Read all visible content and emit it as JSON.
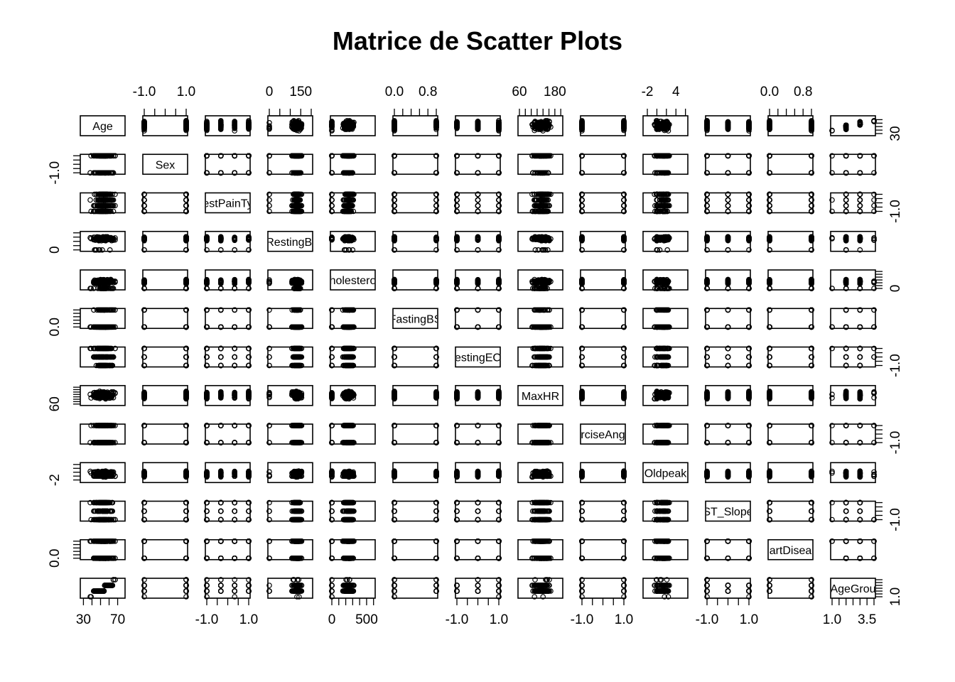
{
  "chart_data": {
    "type": "scatter",
    "kind": "scatterplot-matrix",
    "title": "Matrice de Scatter Plots",
    "variables": [
      {
        "name": "Age",
        "label": "Age",
        "range": [
          28,
          77
        ],
        "ticks": [
          30,
          40,
          50,
          60,
          70
        ],
        "tick_labels": [
          "30",
          "70"
        ],
        "axis": "bottom"
      },
      {
        "name": "Sex",
        "label": "Sex",
        "range": [
          -1,
          1
        ],
        "ticks": [
          -1.0,
          -0.5,
          0.0,
          0.5,
          1.0
        ],
        "tick_labels": [
          "-1.0",
          "1.0"
        ],
        "axis": "top",
        "levels": [
          -1,
          1
        ]
      },
      {
        "name": "ChestPainType",
        "label": "estPainTy",
        "range": [
          -1,
          1
        ],
        "ticks": [
          -1.0,
          -0.5,
          0.0,
          0.5,
          1.0
        ],
        "tick_labels": [
          "-1.0",
          "1.0"
        ],
        "axis": "bottom",
        "levels": [
          -1,
          -0.33,
          0.33,
          1
        ]
      },
      {
        "name": "RestingBP",
        "label": "RestingBl",
        "range": [
          0,
          200
        ],
        "ticks": [
          0,
          50,
          100,
          150,
          200
        ],
        "tick_labels": [
          "0",
          "150"
        ],
        "axis": "top"
      },
      {
        "name": "Cholesterol",
        "label": "holestero",
        "range": [
          0,
          603
        ],
        "ticks": [
          0,
          100,
          200,
          300,
          400,
          500,
          600
        ],
        "tick_labels": [
          "0",
          "500"
        ],
        "axis": "bottom"
      },
      {
        "name": "FastingBS",
        "label": "FastingBS",
        "range": [
          0,
          1
        ],
        "ticks": [
          0.0,
          0.2,
          0.4,
          0.6,
          0.8,
          1.0
        ],
        "tick_labels": [
          "0.0",
          "0.8"
        ],
        "axis": "top",
        "levels": [
          0,
          1
        ]
      },
      {
        "name": "RestingECG",
        "label": "estingEC",
        "range": [
          -1,
          1
        ],
        "ticks": [
          -1.0,
          -0.5,
          0.0,
          0.5,
          1.0
        ],
        "tick_labels": [
          "-1.0",
          "1.0"
        ],
        "axis": "bottom",
        "levels": [
          -1,
          0,
          1
        ]
      },
      {
        "name": "MaxHR",
        "label": "MaxHR",
        "range": [
          60,
          202
        ],
        "ticks": [
          60,
          80,
          100,
          120,
          140,
          160,
          180,
          200
        ],
        "tick_labels": [
          "60",
          "180"
        ],
        "axis": "top"
      },
      {
        "name": "ExerciseAngina",
        "label": "rciseAng",
        "range": [
          -1,
          1
        ],
        "ticks": [
          -1.0,
          -0.5,
          0.0,
          0.5,
          1.0
        ],
        "tick_labels": [
          "-1.0",
          "1.0"
        ],
        "axis": "bottom",
        "levels": [
          -1,
          1
        ]
      },
      {
        "name": "Oldpeak",
        "label": "Oldpeak",
        "range": [
          -2.6,
          6.2
        ],
        "ticks": [
          -2,
          0,
          2,
          4,
          6
        ],
        "tick_labels": [
          "-2",
          "4"
        ],
        "axis": "top"
      },
      {
        "name": "ST_Slope",
        "label": "ST_Slope",
        "range": [
          -1,
          1
        ],
        "ticks": [
          -1.0,
          -0.5,
          0.0,
          0.5,
          1.0
        ],
        "tick_labels": [
          "-1.0",
          "1.0"
        ],
        "axis": "bottom",
        "levels": [
          -1,
          0,
          1
        ]
      },
      {
        "name": "HeartDisease",
        "label": "artDisea",
        "range": [
          0,
          1
        ],
        "ticks": [
          0.0,
          0.2,
          0.4,
          0.6,
          0.8,
          1.0
        ],
        "tick_labels": [
          "0.0",
          "0.8"
        ],
        "axis": "top",
        "levels": [
          0,
          1
        ]
      },
      {
        "name": "AgeGroup",
        "label": "AgeGrou",
        "range": [
          1,
          4
        ],
        "ticks": [
          1.0,
          1.5,
          2.0,
          2.5,
          3.0,
          3.5,
          4.0
        ],
        "tick_labels": [
          "1.0",
          "3.5"
        ],
        "axis": "bottom",
        "levels": [
          1,
          2,
          3,
          4
        ]
      }
    ],
    "left_axis_labels": [
      {
        "row": 1,
        "labels": [
          "-1.0"
        ]
      },
      {
        "row": 3,
        "labels": [
          "0"
        ]
      },
      {
        "row": 5,
        "labels": [
          "0.0"
        ]
      },
      {
        "row": 7,
        "labels": [
          "60"
        ]
      },
      {
        "row": 9,
        "labels": [
          "-2"
        ]
      },
      {
        "row": 11,
        "labels": [
          "0.0"
        ]
      }
    ],
    "right_axis_labels": [
      {
        "row": 0,
        "labels": [
          "30"
        ]
      },
      {
        "row": 2,
        "labels": [
          "-1.0"
        ]
      },
      {
        "row": 4,
        "labels": [
          "0"
        ]
      },
      {
        "row": 6,
        "labels": [
          "-1.0"
        ]
      },
      {
        "row": 8,
        "labels": [
          "-1.0"
        ]
      },
      {
        "row": 10,
        "labels": [
          "-1.0"
        ]
      },
      {
        "row": 12,
        "labels": [
          "1.0"
        ]
      }
    ],
    "grid": false,
    "legend": "none"
  }
}
